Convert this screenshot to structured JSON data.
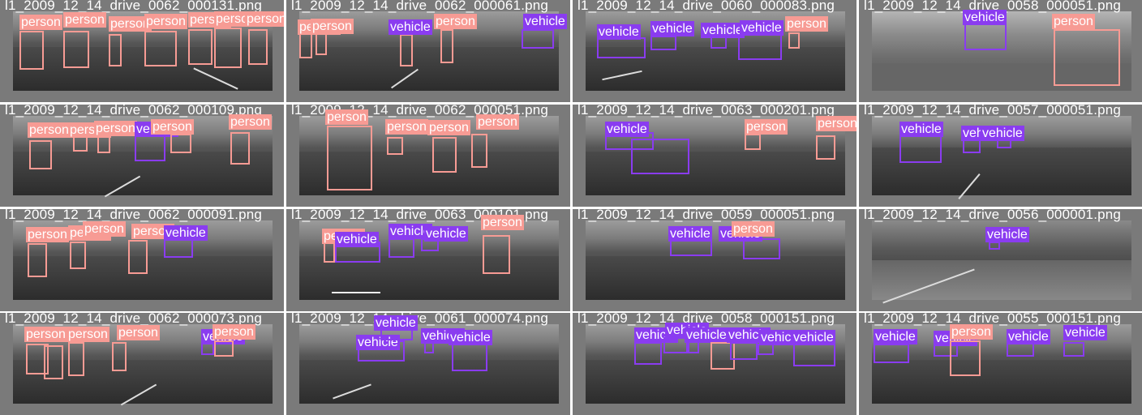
{
  "tiles": [
    {
      "filename": "l1_2009_12_14_drive_0062_000131.png",
      "labels": [
        "person",
        "person",
        "person",
        "person",
        "person",
        "person",
        "person"
      ]
    },
    {
      "filename": "l1_2009_12_14_drive_0062_000061.png",
      "labels": [
        "person",
        "person",
        "vehicle",
        "person",
        "vehicle"
      ]
    },
    {
      "filename": "l1_2009_12_14_drive_0060_000083.png",
      "labels": [
        "vehicle",
        "vehicle",
        "vehicle",
        "vehicle",
        "person"
      ]
    },
    {
      "filename": "l1_2009_12_14_drive_0058_000051.png",
      "labels": [
        "vehicle",
        "person"
      ]
    },
    {
      "filename": "l1_2009_12_14_drive_0062_000109.png",
      "labels": [
        "person",
        "person",
        "person",
        "vehicle",
        "person",
        "person"
      ]
    },
    {
      "filename": "l1_2009_12_14_drive_0062_000051.png",
      "labels": [
        "person",
        "person",
        "person",
        "person"
      ]
    },
    {
      "filename": "l1_2009_12_14_drive_0063_000201.png",
      "labels": [
        "vehicle",
        "vehicle",
        "person",
        "person"
      ]
    },
    {
      "filename": "l1_2009_12_14_drive_0057_000051.png",
      "labels": [
        "vehicle",
        "vehicle",
        "vehicle"
      ]
    },
    {
      "filename": "l1_2009_12_14_drive_0062_000091.png",
      "labels": [
        "person",
        "person",
        "person",
        "person",
        "vehicle"
      ]
    },
    {
      "filename": "l1_2009_12_14_drive_0063_000101.png",
      "labels": [
        "person",
        "vehicle",
        "vehicle",
        "vehicle",
        "person"
      ]
    },
    {
      "filename": "l1_2009_12_14_drive_0059_000051.png",
      "labels": [
        "vehicle",
        "vehicle",
        "person"
      ]
    },
    {
      "filename": "l1_2009_12_14_drive_0056_000001.png",
      "labels": [
        "vehicle"
      ]
    },
    {
      "filename": "l1_2009_12_14_drive_0062_000073.png",
      "labels": [
        "person",
        "person",
        "person",
        "vehicle",
        "person"
      ]
    },
    {
      "filename": "l1_2009_12_14_drive_0061_000074.png",
      "labels": [
        "vehicle",
        "vehicle",
        "vehicle",
        "vehicle"
      ]
    },
    {
      "filename": "l1_2009_12_14_drive_0058_000151.png",
      "labels": [
        "vehicle",
        "vehicle",
        "vehicle",
        "vehicle",
        "vehicle",
        "vehicle"
      ]
    },
    {
      "filename": "l1_2009_12_14_drive_0055_000151.png",
      "labels": [
        "vehicle",
        "vehicle",
        "person",
        "vehicle",
        "vehicle",
        "vehicle"
      ]
    }
  ],
  "colors": {
    "person": "#f79b94",
    "vehicle": "#8a3cf0"
  }
}
